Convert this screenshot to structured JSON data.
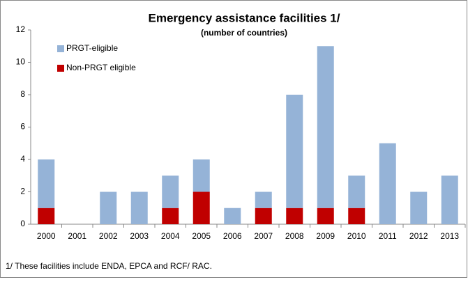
{
  "chart_data": {
    "type": "stacked-bar",
    "title": "Emergency assistance  facilities 1/",
    "subtitle": "(number of countries)",
    "categories": [
      "2000",
      "2001",
      "2002",
      "2003",
      "2004",
      "2005",
      "2006",
      "2007",
      "2008",
      "2009",
      "2010",
      "2011",
      "2012",
      "2013"
    ],
    "series": [
      {
        "name": "PRGT-eligible",
        "color": "#95b3d7",
        "values": [
          3,
          0,
          2,
          2,
          2,
          2,
          1,
          1,
          7,
          10,
          2,
          5,
          2,
          3
        ]
      },
      {
        "name": "Non-PRGT eligible",
        "color": "#c00000",
        "values": [
          1,
          0,
          0,
          0,
          1,
          2,
          0,
          1,
          1,
          1,
          1,
          0,
          0,
          0
        ]
      }
    ],
    "ylim": [
      0,
      12
    ],
    "yticks": [
      0,
      2,
      4,
      6,
      8,
      10,
      12
    ],
    "legend": "upper-left",
    "footnote": "1/ These facilities include ENDA, EPCA and RCF/ RAC."
  }
}
